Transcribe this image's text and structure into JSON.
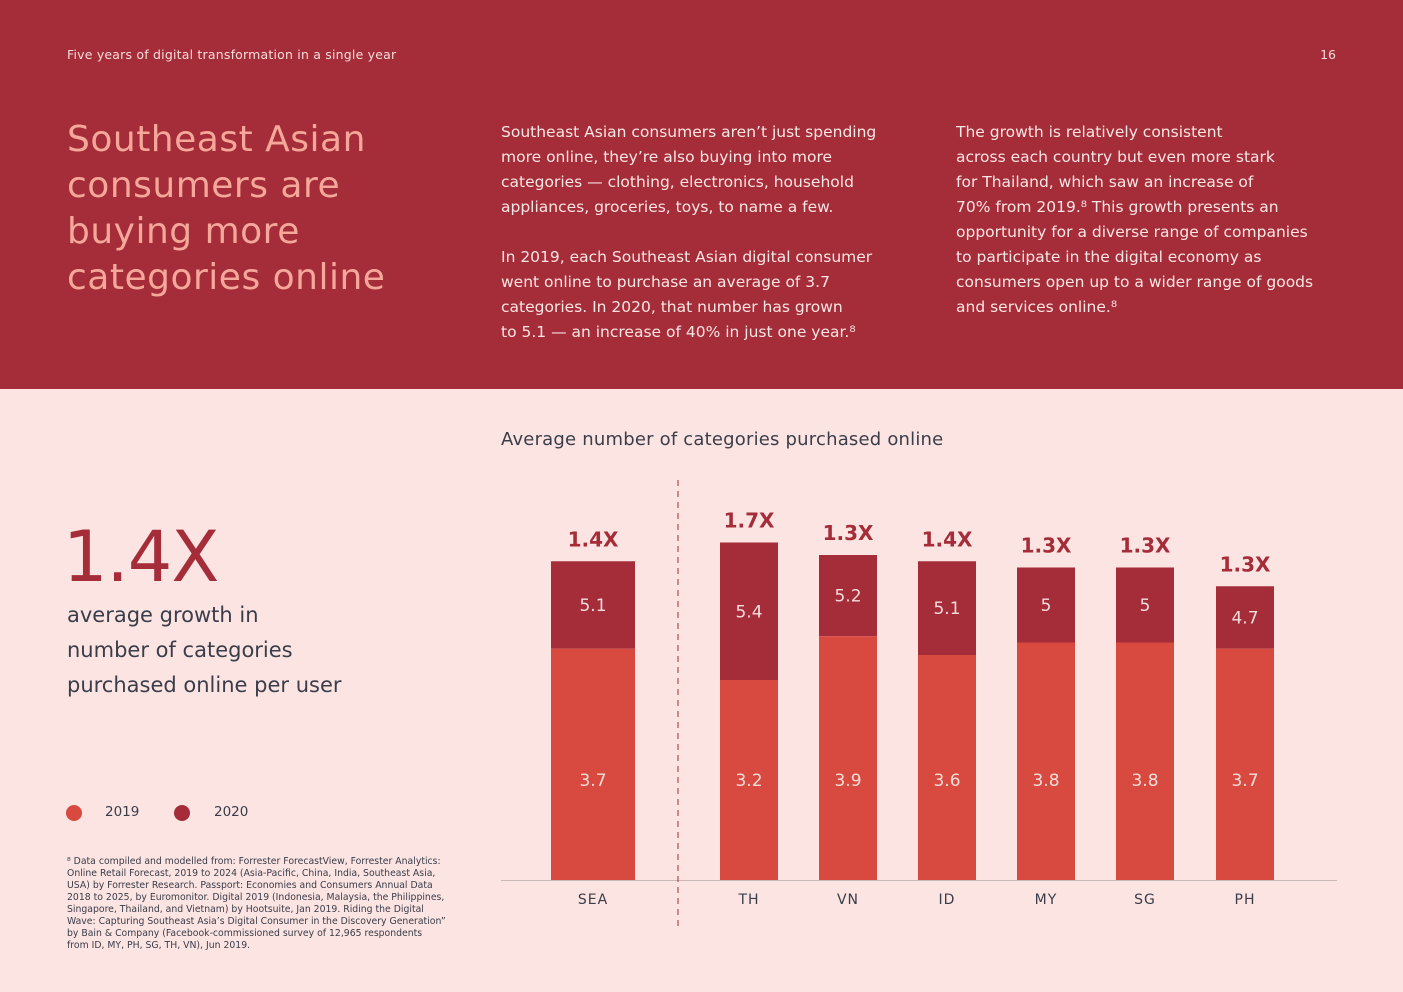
{
  "header": {
    "section_title": "Five years of digital transformation in a single year",
    "page_number": "16"
  },
  "headline": "Southeast Asian consumers are buying more categories online",
  "body": {
    "col1_p1": "Southeast Asian consumers aren’t just spending\nmore online, they’re also buying into more\ncategories — clothing, electronics, household\nappliances, groceries, toys, to name a few.",
    "col1_p2": "In 2019, each Southeast Asian digital consumer\nwent online to purchase an average of 3.7\ncategories. In 2020, that number has grown\nto 5.1 — an increase of 40% in just one year.⁸",
    "col2_p1": "The growth is relatively consistent\nacross each country but even more stark\nfor Thailand, which saw an increase of\n70% from 2019.⁸ This growth presents an\nopportunity for a diverse range of companies\nto participate in the digital economy as\nconsumers open up to a wider range of goods\nand services online.⁸"
  },
  "stat": {
    "value": "1.4X",
    "caption": "average growth in\nnumber of categories\npurchased online per user"
  },
  "legend": [
    {
      "label": "2019",
      "color": "#d84a3f"
    },
    {
      "label": "2020",
      "color": "#a52c39"
    }
  ],
  "footnote": "⁸ Data compiled and modelled from: Forrester ForecastView, Forrester Analytics:\nOnline Retail Forecast, 2019 to 2024 (Asia-Pacific, China, India, Southeast Asia,\nUSA) by Forrester Research. Passport: Economies and Consumers Annual Data\n2018 to 2025, by Euromonitor. Digital 2019 (Indonesia, Malaysia, the Philippines,\nSingapore, Thailand, and Vietnam) by Hootsuite, Jan 2019. Riding the Digital\nWave: Capturing Southeast Asia’s Digital Consumer in the Discovery Generation”\nby Bain & Company (Facebook-commissioned survey of 12,965 respondents\nfrom ID, MY, PH, SG, TH, VN), Jun 2019.",
  "chart_data": {
    "type": "bar",
    "title": "Average number of categories purchased online",
    "categories": [
      "SEA",
      "TH",
      "VN",
      "ID",
      "MY",
      "SG",
      "PH"
    ],
    "series": [
      {
        "name": "2019",
        "values": [
          3.7,
          3.2,
          3.9,
          3.6,
          3.8,
          3.8,
          3.7
        ],
        "color": "#d84a3f"
      },
      {
        "name": "2020",
        "values": [
          5.1,
          5.4,
          5.2,
          5.1,
          5,
          5,
          4.7
        ],
        "color": "#a52c39"
      }
    ],
    "growth_labels": [
      "1.4X",
      "1.7X",
      "1.3X",
      "1.4X",
      "1.3X",
      "1.3X",
      "1.3X"
    ],
    "ylim": [
      0,
      6
    ]
  }
}
